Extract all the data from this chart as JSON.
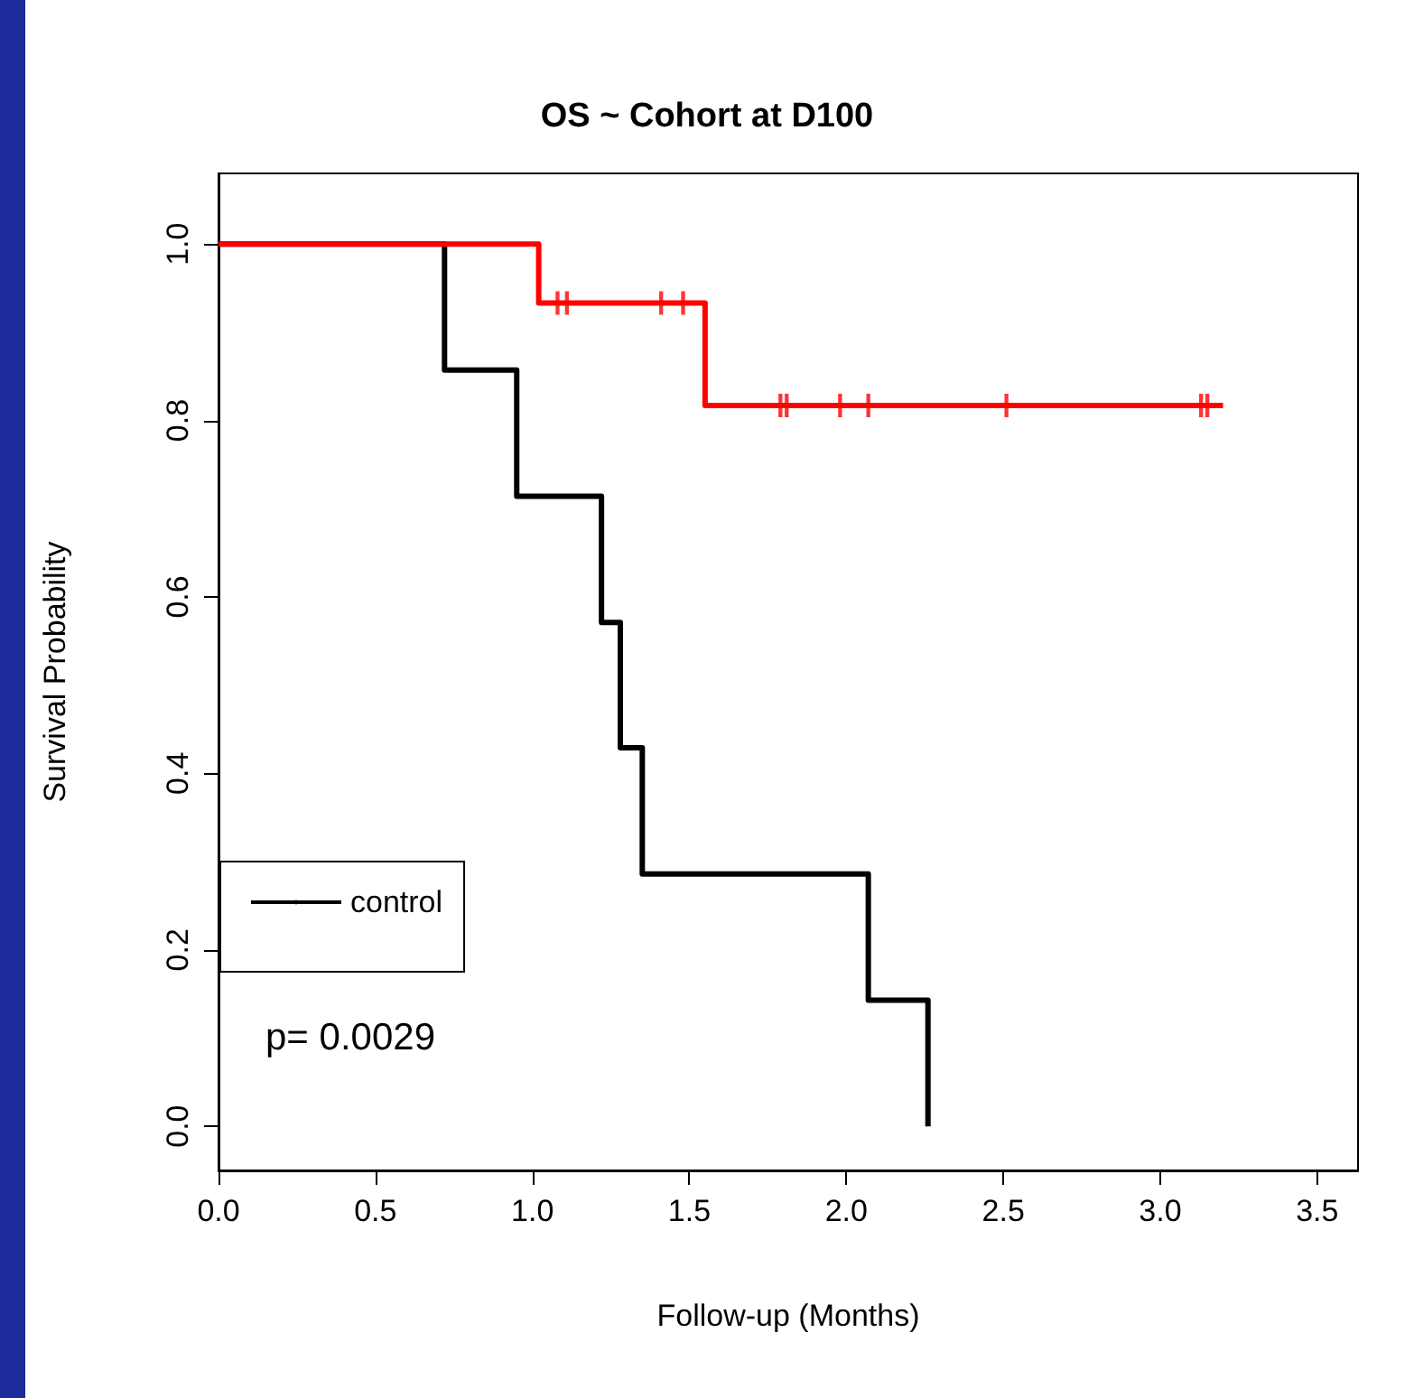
{
  "chart_data": {
    "type": "step",
    "title": "OS ~ Cohort at D100",
    "xlabel": "Follow-up (Months)",
    "ylabel": "Survival Probability",
    "series": [
      {
        "name": "control",
        "color": "#000000",
        "x": [
          0,
          0.72,
          0.95,
          1.22,
          1.28,
          1.35,
          2.07,
          2.26
        ],
        "values": [
          1,
          0.857,
          0.714,
          0.571,
          0.429,
          0.286,
          0.143,
          0
        ]
      },
      {
        "color": "#ff0000",
        "x": [
          0,
          1.02,
          1.55,
          3.2
        ],
        "values": [
          1,
          0.933,
          0.817,
          0.817
        ]
      },
      {
        "type": "scatter",
        "marker": "cross",
        "color": "#ff0000",
        "x": [
          1.08,
          1.11,
          1.41,
          1.48,
          1.79,
          1.81,
          1.98,
          2.07,
          2.51,
          3.13,
          3.15
        ],
        "values": [
          0.933,
          0.933,
          0.933,
          0.933,
          0.817,
          0.817,
          0.817,
          0.817,
          0.817,
          0.817,
          0.817
        ]
      }
    ],
    "xlim": [
      0,
      3.63
    ],
    "ylim": [
      -0.05,
      1.08
    ],
    "xticks": [
      {
        "value": 0,
        "label": "0.0"
      },
      {
        "value": 0.5,
        "label": "0.5"
      },
      {
        "value": 1,
        "label": "1.0"
      },
      {
        "value": 1.5,
        "label": "1.5"
      },
      {
        "value": 2,
        "label": "2.0"
      },
      {
        "value": 2.5,
        "label": "2.5"
      },
      {
        "value": 3,
        "label": "3.0"
      },
      {
        "value": 3.5,
        "label": "3.5"
      }
    ],
    "yticks": [
      {
        "value": 0,
        "label": "0.0"
      },
      {
        "value": 0.2,
        "label": "0.2"
      },
      {
        "value": 0.4,
        "label": "0.4"
      },
      {
        "value": 0.6,
        "label": "0.6"
      },
      {
        "value": 0.8,
        "label": "0.8"
      },
      {
        "value": 1,
        "label": "1.0"
      }
    ],
    "legend": "bottom left",
    "grid": false,
    "marker": "none",
    "line_style": "solid",
    "annotations": [
      "p= 0.0029"
    ]
  }
}
